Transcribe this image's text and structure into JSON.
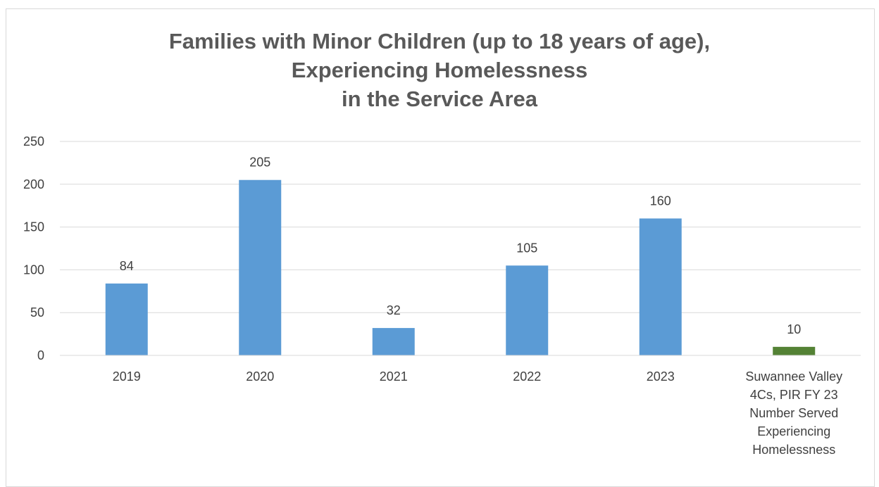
{
  "chart_data": {
    "type": "bar",
    "title_lines": [
      "Families with Minor Children (up to 18 years of age),",
      "Experiencing Homelessness",
      "in the Service Area"
    ],
    "categories": [
      [
        "2019"
      ],
      [
        "2020"
      ],
      [
        "2021"
      ],
      [
        "2022"
      ],
      [
        "2023"
      ],
      [
        "Suwannee Valley",
        "4Cs,  PIR FY 23",
        "Number Served",
        "Experiencing",
        "Homelessness"
      ]
    ],
    "values": [
      84,
      205,
      32,
      105,
      160,
      10
    ],
    "value_labels": [
      "84",
      "205",
      "32",
      "105",
      "160",
      "10"
    ],
    "bar_colors": [
      "#5b9bd5",
      "#5b9bd5",
      "#5b9bd5",
      "#5b9bd5",
      "#5b9bd5",
      "#548235"
    ],
    "ylim": [
      0,
      250
    ],
    "yticks": [
      0,
      50,
      100,
      150,
      200,
      250
    ],
    "grid": true,
    "legend": "none",
    "xlabel": "",
    "ylabel": ""
  }
}
